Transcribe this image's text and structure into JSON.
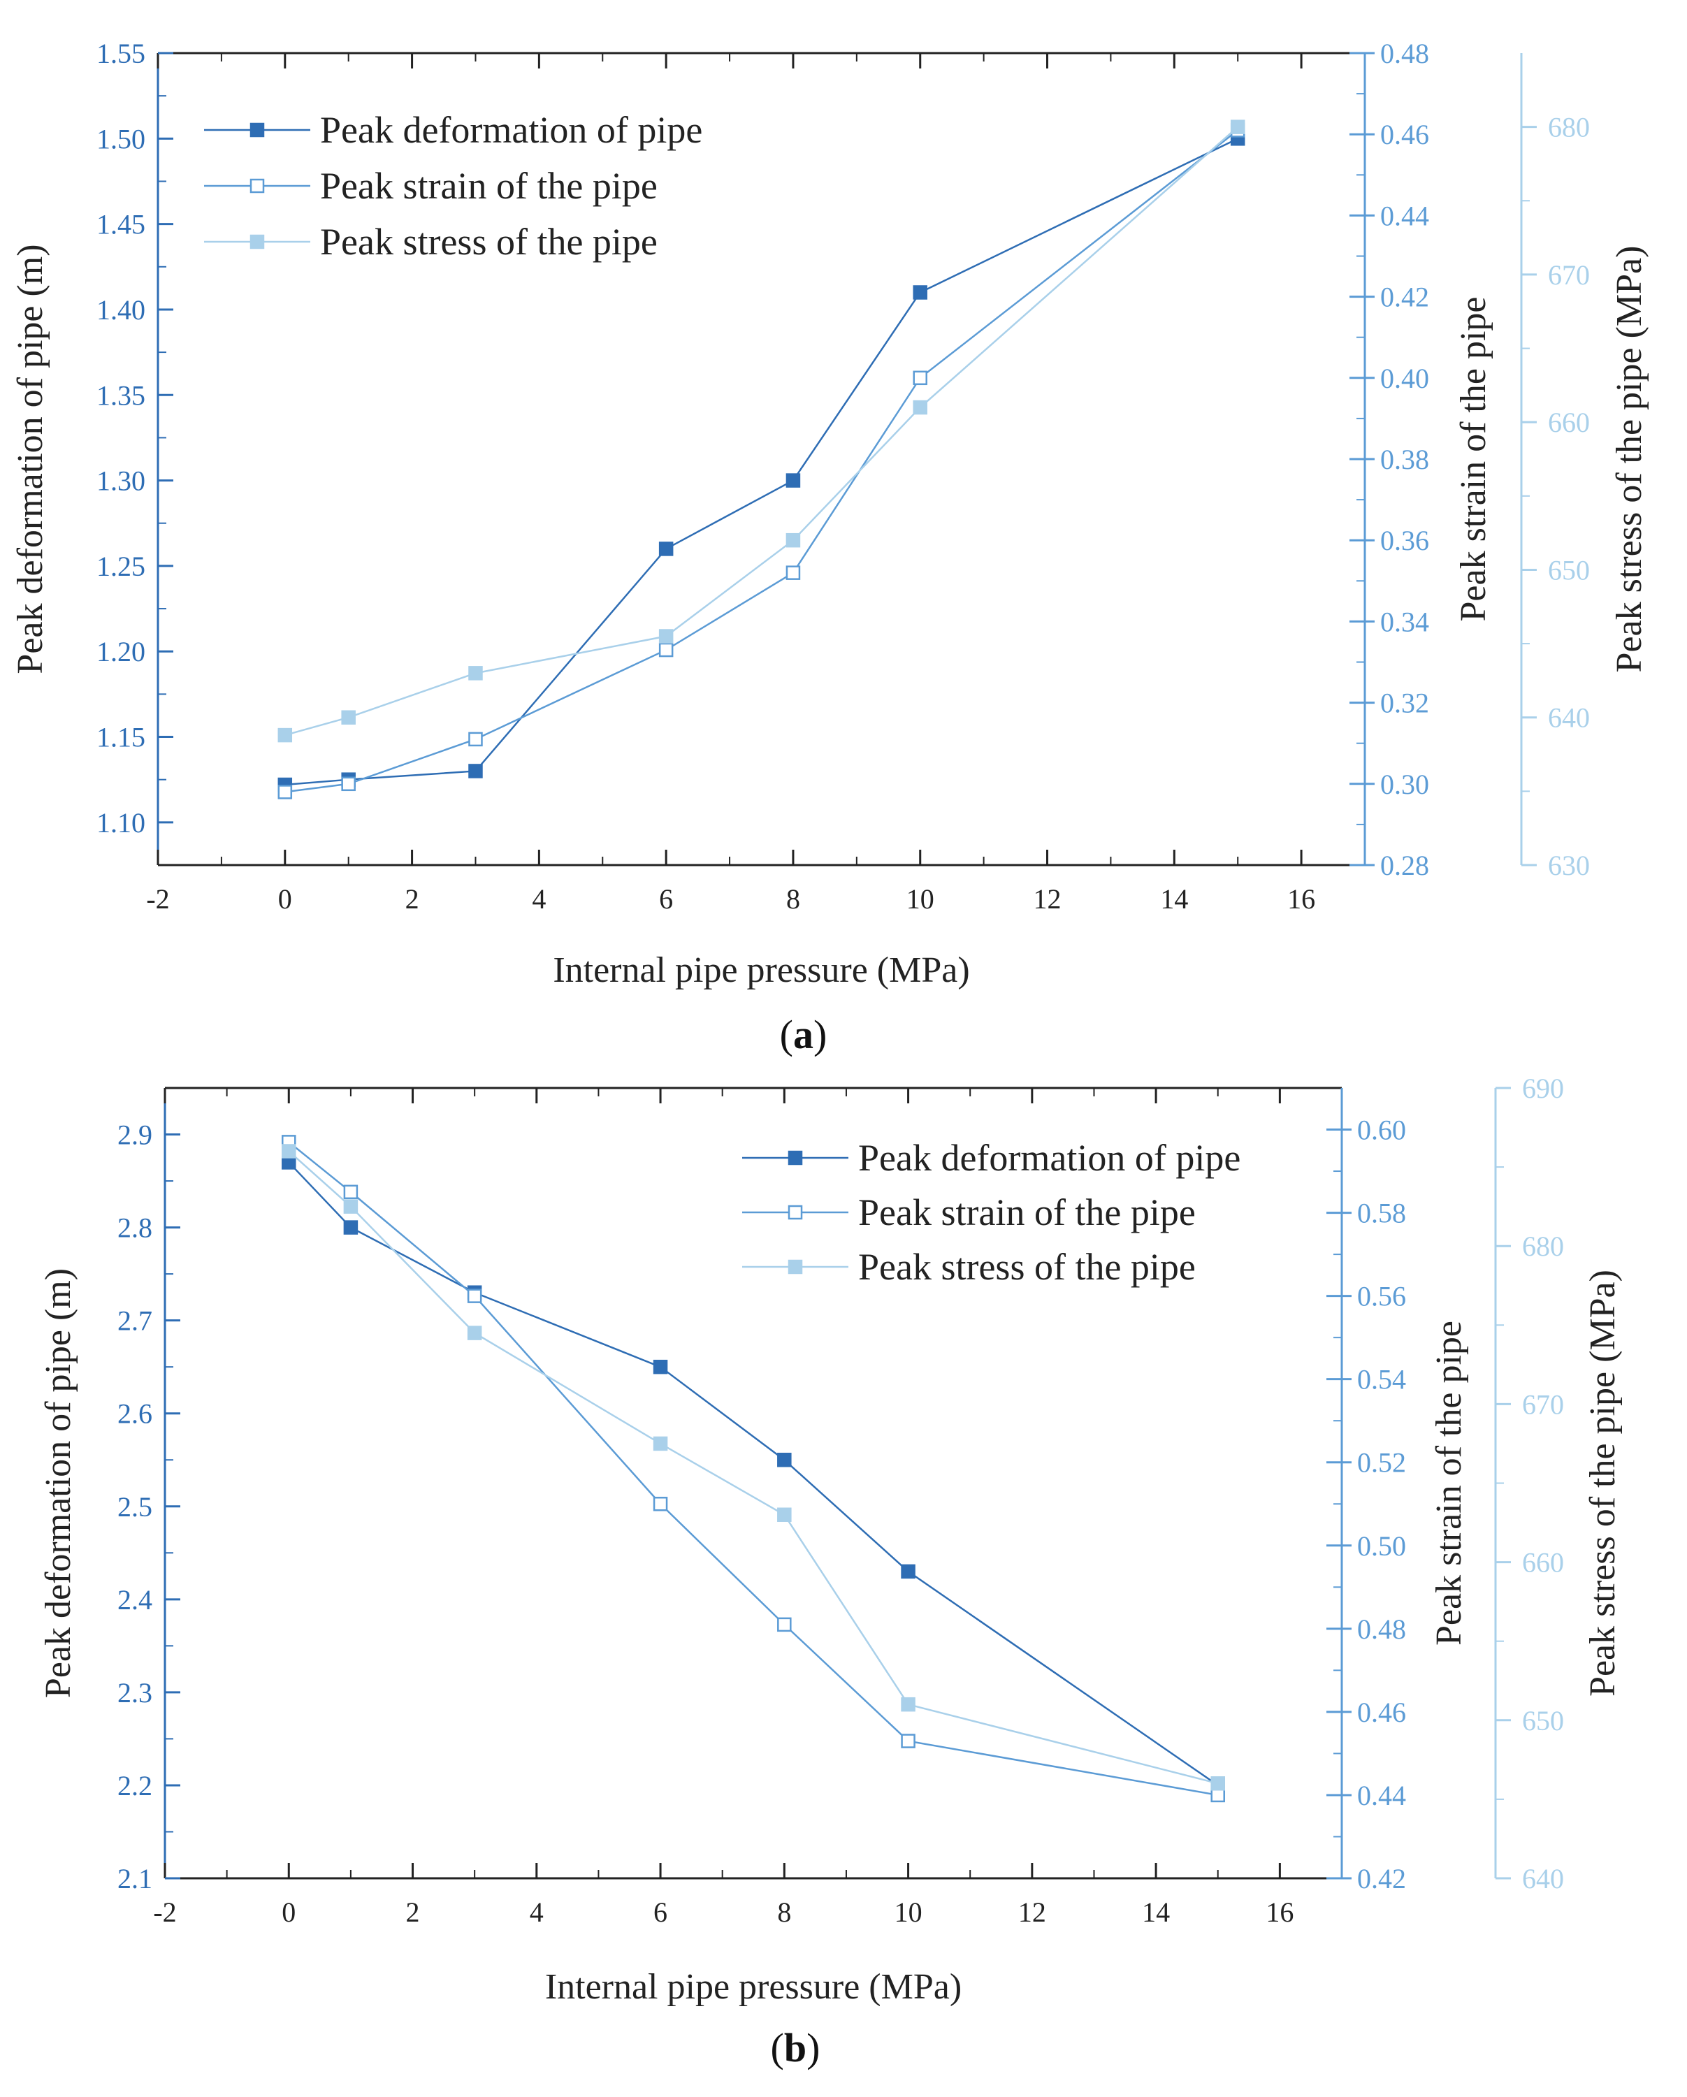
{
  "colors": {
    "deformation": "#2E6DB4",
    "strain": "#5B9BD5",
    "stress": "#A9D0EA",
    "strain_marker_fill": "#FFFFFF",
    "text": "#222222"
  },
  "chart_data": [
    {
      "id": "a",
      "type": "line",
      "caption": {
        "open": "(",
        "letter": "a",
        "close": ")"
      },
      "xlabel": "Internal pipe pressure (MPa)",
      "xlim": [
        -2,
        17
      ],
      "xticks": [
        -2,
        0,
        2,
        4,
        6,
        8,
        10,
        12,
        14,
        16
      ],
      "xtick_labels": [
        "-2",
        "0",
        "2",
        "4",
        "6",
        "8",
        "10",
        "12",
        "14",
        "16"
      ],
      "y_axes": [
        {
          "key": "deformation",
          "side": "left",
          "label": "Peak deformation of pipe (m)",
          "lim": [
            1.075,
            1.55
          ],
          "ticks": [
            1.1,
            1.15,
            1.2,
            1.25,
            1.3,
            1.35,
            1.4,
            1.45,
            1.5,
            1.55
          ],
          "tick_labels": [
            "1.10",
            "1.15",
            "1.20",
            "1.25",
            "1.30",
            "1.35",
            "1.40",
            "1.45",
            "1.50",
            "1.55"
          ]
        },
        {
          "key": "strain",
          "side": "right",
          "label": "Peak strain of the pipe",
          "lim": [
            0.28,
            0.48
          ],
          "ticks": [
            0.28,
            0.3,
            0.32,
            0.34,
            0.36,
            0.38,
            0.4,
            0.42,
            0.44,
            0.46,
            0.48
          ],
          "tick_labels": [
            "0.28",
            "0.30",
            "0.32",
            "0.34",
            "0.36",
            "0.38",
            "0.40",
            "0.42",
            "0.44",
            "0.46",
            "0.48"
          ]
        },
        {
          "key": "stress",
          "side": "right-outer",
          "label": "Peak stress of the pipe (MPa)",
          "lim": [
            630,
            685
          ],
          "ticks": [
            630,
            640,
            650,
            660,
            670,
            680
          ],
          "tick_labels": [
            "630",
            "640",
            "650",
            "660",
            "670",
            "680"
          ]
        }
      ],
      "series": [
        {
          "name": "Peak deformation of pipe",
          "axis": "deformation",
          "marker": "filled-square",
          "x": [
            0,
            1,
            3,
            6,
            8,
            10,
            15
          ],
          "values": [
            1.122,
            1.125,
            1.13,
            1.26,
            1.3,
            1.41,
            1.5
          ]
        },
        {
          "name": "Peak strain of the pipe",
          "axis": "strain",
          "marker": "open-square",
          "x": [
            0,
            1,
            3,
            6,
            8,
            10,
            15
          ],
          "values": [
            0.298,
            0.3,
            0.311,
            0.333,
            0.352,
            0.4,
            0.461
          ]
        },
        {
          "name": "Peak stress of the pipe",
          "axis": "stress",
          "marker": "filled-square",
          "x": [
            0,
            1,
            3,
            6,
            8,
            10,
            15
          ],
          "values": [
            638.8,
            640.0,
            643.0,
            645.5,
            652.0,
            661.0,
            680.0
          ]
        }
      ],
      "legend_position": "top-left"
    },
    {
      "id": "b",
      "type": "line",
      "caption": {
        "open": "(",
        "letter": "b",
        "close": ")"
      },
      "xlabel": "Internal pipe pressure (MPa)",
      "xlim": [
        -2,
        17
      ],
      "xticks": [
        -2,
        0,
        2,
        4,
        6,
        8,
        10,
        12,
        14,
        16
      ],
      "xtick_labels": [
        "-2",
        "0",
        "2",
        "4",
        "6",
        "8",
        "10",
        "12",
        "14",
        "16"
      ],
      "y_axes": [
        {
          "key": "deformation",
          "side": "left",
          "label": "Peak deformation of pipe (m)",
          "lim": [
            2.1,
            2.95
          ],
          "ticks": [
            2.1,
            2.2,
            2.3,
            2.4,
            2.5,
            2.6,
            2.7,
            2.8,
            2.9
          ],
          "tick_labels": [
            "2.1",
            "2.2",
            "2.3",
            "2.4",
            "2.5",
            "2.6",
            "2.7",
            "2.8",
            "2.9"
          ]
        },
        {
          "key": "strain",
          "side": "right",
          "label": "Peak strain of the pipe",
          "lim": [
            0.42,
            0.61
          ],
          "ticks": [
            0.42,
            0.44,
            0.46,
            0.48,
            0.5,
            0.52,
            0.54,
            0.56,
            0.58,
            0.6
          ],
          "tick_labels": [
            "0.42",
            "0.44",
            "0.46",
            "0.48",
            "0.50",
            "0.52",
            "0.54",
            "0.56",
            "0.58",
            "0.60"
          ]
        },
        {
          "key": "stress",
          "side": "right-outer",
          "label": "Peak stress of the pipe (MPa)",
          "lim": [
            640,
            690
          ],
          "ticks": [
            640,
            650,
            660,
            670,
            680,
            690
          ],
          "tick_labels": [
            "640",
            "650",
            "660",
            "670",
            "680",
            "690"
          ]
        }
      ],
      "series": [
        {
          "name": "Peak deformation of pipe",
          "axis": "deformation",
          "marker": "filled-square",
          "x": [
            0,
            1,
            3,
            6,
            8,
            10,
            15
          ],
          "values": [
            2.87,
            2.8,
            2.73,
            2.65,
            2.55,
            2.43,
            2.2
          ]
        },
        {
          "name": "Peak strain of the pipe",
          "axis": "strain",
          "marker": "open-square",
          "x": [
            0,
            1,
            3,
            6,
            8,
            10,
            15
          ],
          "values": [
            0.597,
            0.585,
            0.56,
            0.51,
            0.481,
            0.453,
            0.44
          ]
        },
        {
          "name": "Peak stress of the pipe",
          "axis": "stress",
          "marker": "filled-square",
          "x": [
            0,
            1,
            3,
            6,
            8,
            10,
            15
          ],
          "values": [
            686.0,
            682.5,
            674.5,
            667.5,
            663.0,
            651.0,
            646.0
          ]
        }
      ],
      "legend_position": "top-right"
    }
  ]
}
